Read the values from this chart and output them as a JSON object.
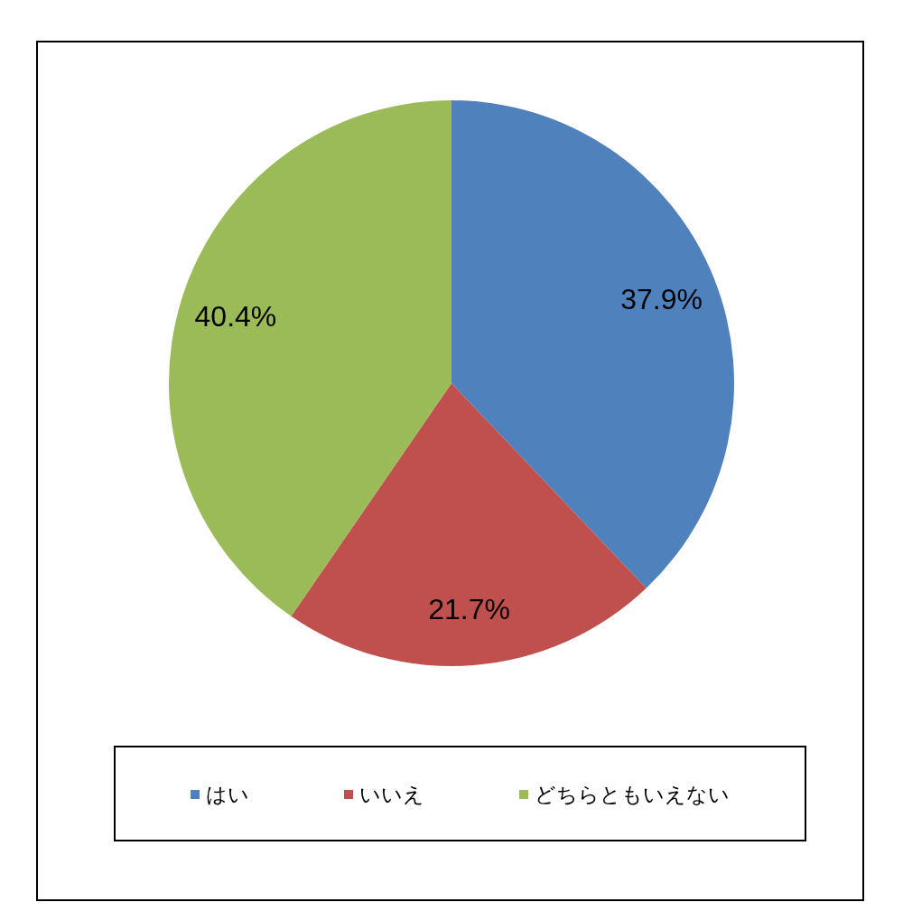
{
  "chart_data": {
    "type": "pie",
    "categories": [
      "はい",
      "いいえ",
      "どちらともいえない"
    ],
    "values": [
      37.9,
      21.7,
      40.4
    ],
    "colors": [
      "#4f81bd",
      "#c0504d",
      "#9bbb59"
    ],
    "value_labels": [
      "37.9%",
      "21.7%",
      "40.4%"
    ],
    "legend": "bottom"
  }
}
